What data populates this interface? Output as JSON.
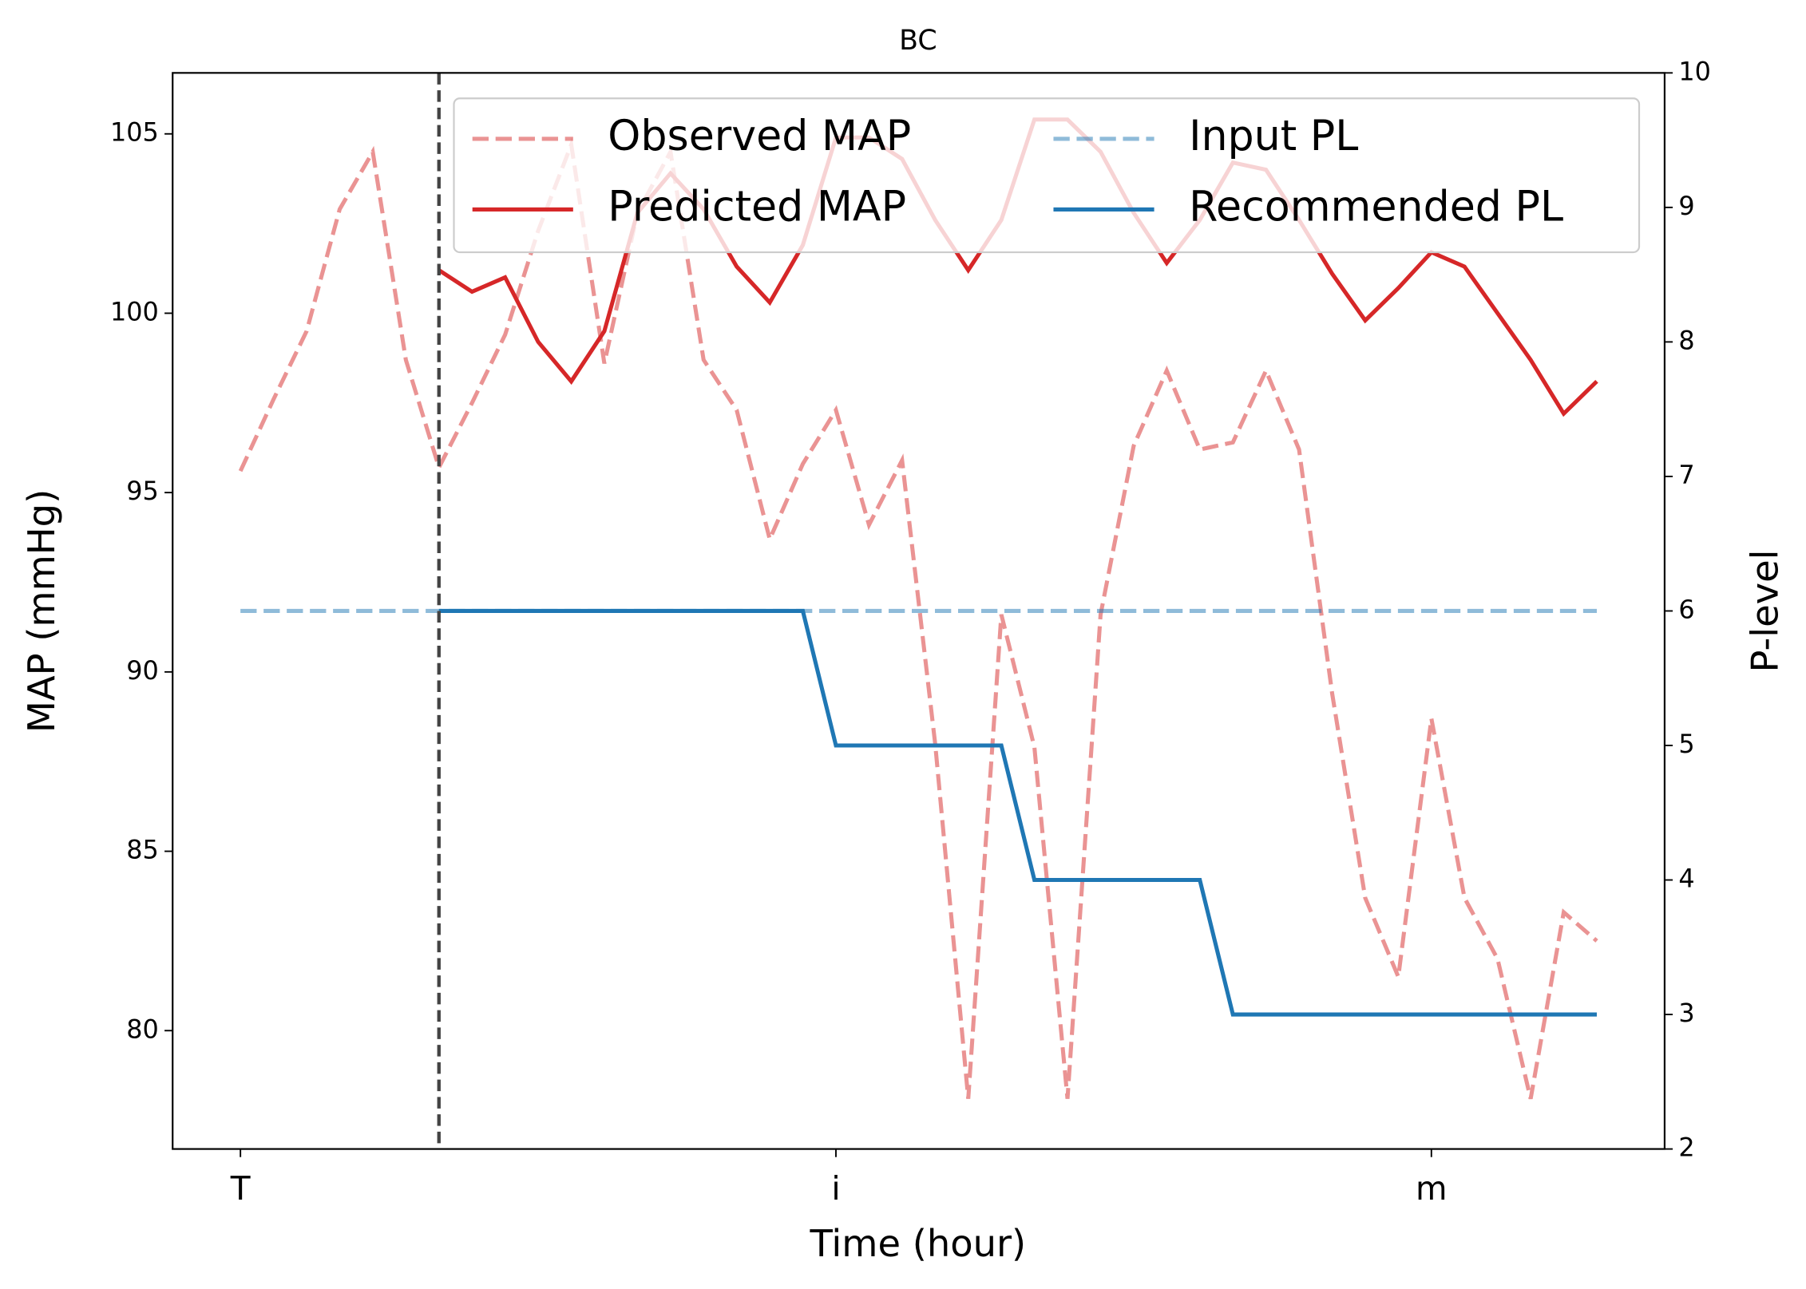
{
  "chart_data": {
    "type": "line",
    "title": "BC",
    "xlabel": "Time (hour)",
    "ylabel": "MAP (mmHg)",
    "y2label": "P-level",
    "x": [
      0,
      1,
      2,
      3,
      4,
      5,
      6,
      7,
      8,
      9,
      10,
      11,
      12,
      13,
      14,
      15,
      16,
      17,
      18,
      19,
      20,
      21,
      22,
      23,
      24,
      25,
      26,
      27,
      28,
      29,
      30,
      31,
      32,
      33,
      34,
      35,
      36,
      37,
      38,
      39,
      40,
      41
    ],
    "xlim": [
      -2.05,
      43.05
    ],
    "xticks": [
      {
        "value": 0,
        "label": "T"
      },
      {
        "value": 18,
        "label": "i"
      },
      {
        "value": 36,
        "label": "m"
      }
    ],
    "ylim": [
      76.7,
      106.7
    ],
    "yticks": [
      80,
      85,
      90,
      95,
      100,
      105
    ],
    "y2lim": [
      2,
      10
    ],
    "y2ticks": [
      2,
      3,
      4,
      5,
      6,
      7,
      8,
      9,
      10
    ],
    "legend": "upper right",
    "vline": {
      "x": 6,
      "color": "#444444",
      "linestyle": "dashed"
    },
    "series": [
      {
        "name": "Observed MAP",
        "color": "#d62728",
        "opacity": 0.5,
        "linestyle": "dashed",
        "values": [
          95.6,
          97.6,
          99.5,
          102.9,
          104.5,
          98.7,
          95.7,
          97.5,
          99.4,
          102.3,
          104.7,
          98.6,
          102.8,
          104.5,
          98.7,
          97.3,
          93.7,
          95.8,
          97.3,
          94.1,
          95.9,
          88.0,
          78.1,
          91.6,
          87.9,
          78.1,
          91.6,
          96.3,
          98.4,
          96.2,
          96.4,
          98.4,
          96.2,
          89.4,
          83.7,
          81.5,
          88.7,
          83.7,
          82.0,
          78.1,
          83.3,
          82.5
        ]
      },
      {
        "name": "Predicted MAP",
        "color": "#d62728",
        "opacity": 1,
        "linestyle": "solid",
        "values": [
          null,
          null,
          null,
          null,
          null,
          null,
          101.2,
          100.6,
          101.0,
          99.2,
          98.1,
          99.5,
          102.8,
          103.9,
          102.9,
          101.3,
          100.3,
          101.9,
          104.9,
          104.9,
          104.3,
          102.6,
          101.2,
          102.6,
          105.4,
          105.4,
          104.5,
          102.8,
          101.4,
          102.6,
          104.2,
          104.0,
          102.6,
          101.1,
          99.8,
          100.7,
          101.7,
          101.3,
          100.0,
          98.7,
          97.2,
          98.1
        ]
      },
      {
        "name": "Input PL",
        "color": "#1f77b4",
        "opacity": 0.5,
        "linestyle": "dashed",
        "axis": "y2",
        "values": [
          6,
          6,
          6,
          6,
          6,
          6,
          6,
          6,
          6,
          6,
          6,
          6,
          6,
          6,
          6,
          6,
          6,
          6,
          6,
          6,
          6,
          6,
          6,
          6,
          6,
          6,
          6,
          6,
          6,
          6,
          6,
          6,
          6,
          6,
          6,
          6,
          6,
          6,
          6,
          6,
          6,
          6
        ]
      },
      {
        "name": "Recommended PL",
        "color": "#1f77b4",
        "opacity": 1,
        "linestyle": "solid",
        "axis": "y2",
        "values": [
          null,
          null,
          null,
          null,
          null,
          null,
          6,
          6,
          6,
          6,
          6,
          6,
          6,
          6,
          6,
          6,
          6,
          6,
          5,
          5,
          5,
          5,
          5,
          5,
          4,
          4,
          4,
          4,
          4,
          4,
          3,
          3,
          3,
          3,
          3,
          3,
          3,
          3,
          3,
          3,
          3,
          3
        ]
      }
    ]
  }
}
